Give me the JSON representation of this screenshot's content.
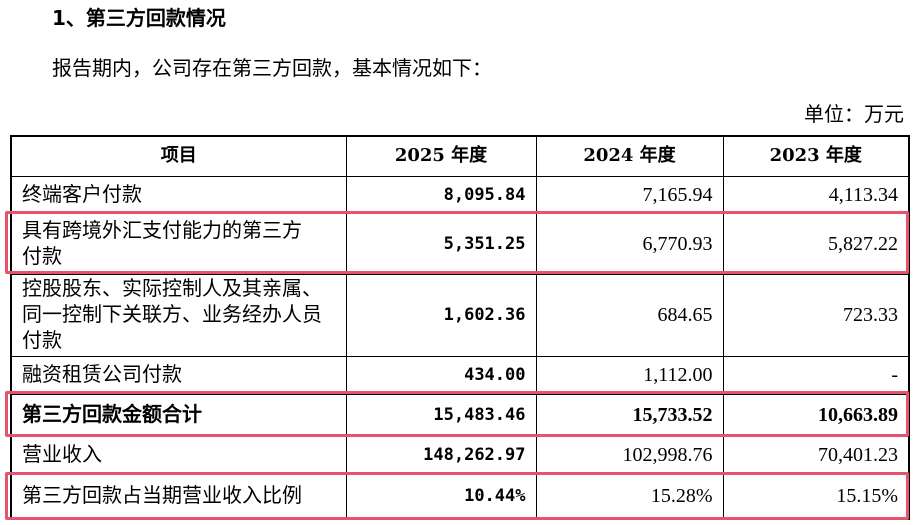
{
  "header": {
    "title": "1、第三方回款情况",
    "intro": "报告期内，公司存在第三方回款，基本情况如下：",
    "unit": "单位：万元"
  },
  "table": {
    "columns": [
      "项目",
      "2025 年度",
      "2024 年度",
      "2023 年度"
    ],
    "rows": [
      {
        "item": [
          "终端客户付款"
        ],
        "values": [
          "8,095.84",
          "7,165.94",
          "4,113.34"
        ]
      },
      {
        "item": [
          "具有跨境外汇支付能力的第三方",
          "付款"
        ],
        "values": [
          "5,351.25",
          "6,770.93",
          "5,827.22"
        ]
      },
      {
        "item": [
          "控股股东、实际控制人及其亲属、",
          "同一控制下关联方、业务经办人员",
          "付款"
        ],
        "values": [
          "1,602.36",
          "684.65",
          "723.33"
        ]
      },
      {
        "item": [
          "融资租赁公司付款"
        ],
        "values": [
          "434.00",
          "1,112.00",
          "-"
        ]
      },
      {
        "item": [
          "第三方回款金额合计"
        ],
        "values": [
          "15,483.46",
          "15,733.52",
          "10,663.89"
        ]
      },
      {
        "item": [
          "营业收入"
        ],
        "values": [
          "148,262.97",
          "102,998.76",
          "70,401.23"
        ]
      },
      {
        "item": [
          "第三方回款占当期营业收入比例"
        ],
        "values": [
          "10.44%",
          "15.28%",
          "15.15%"
        ]
      }
    ]
  }
}
